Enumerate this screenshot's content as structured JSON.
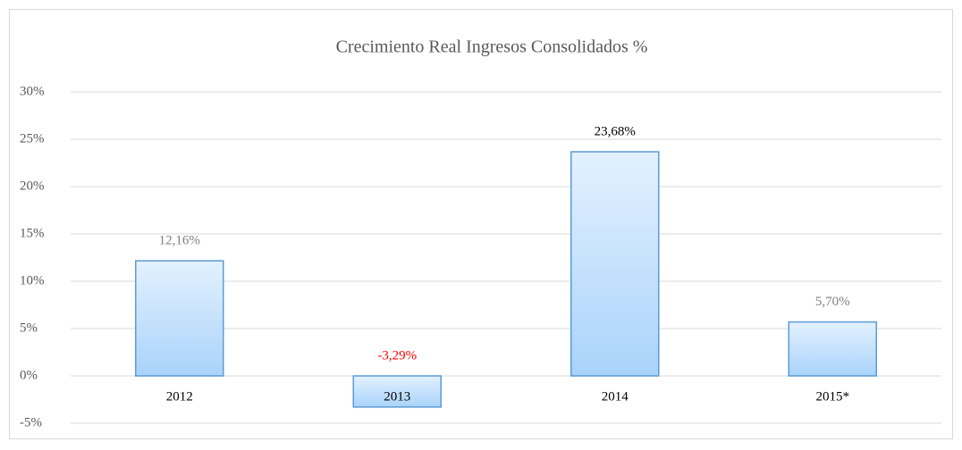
{
  "chart_data": {
    "type": "bar",
    "title": "Crecimiento Real Ingresos Consolidados %",
    "categories": [
      "2012",
      "2013",
      "2014",
      "2015*"
    ],
    "values": [
      12.16,
      -3.29,
      23.68,
      5.7
    ],
    "value_labels": [
      "12,16%",
      "-3,29%",
      "23,68%",
      "5,70%"
    ],
    "value_label_colors": [
      "#7f7f7f",
      "#ff0000",
      "#000000",
      "#7f7f7f"
    ],
    "color": "#5b9bd5",
    "ylim": [
      -5,
      30
    ],
    "yticks": [
      {
        "value": -5,
        "label": "-5%"
      },
      {
        "value": 0,
        "label": "0%"
      },
      {
        "value": 5,
        "label": "5%"
      },
      {
        "value": 10,
        "label": "10%"
      },
      {
        "value": 15,
        "label": "15%"
      },
      {
        "value": 20,
        "label": "20%"
      },
      {
        "value": 25,
        "label": "25%"
      },
      {
        "value": 30,
        "label": "30%"
      }
    ],
    "grid": true
  }
}
